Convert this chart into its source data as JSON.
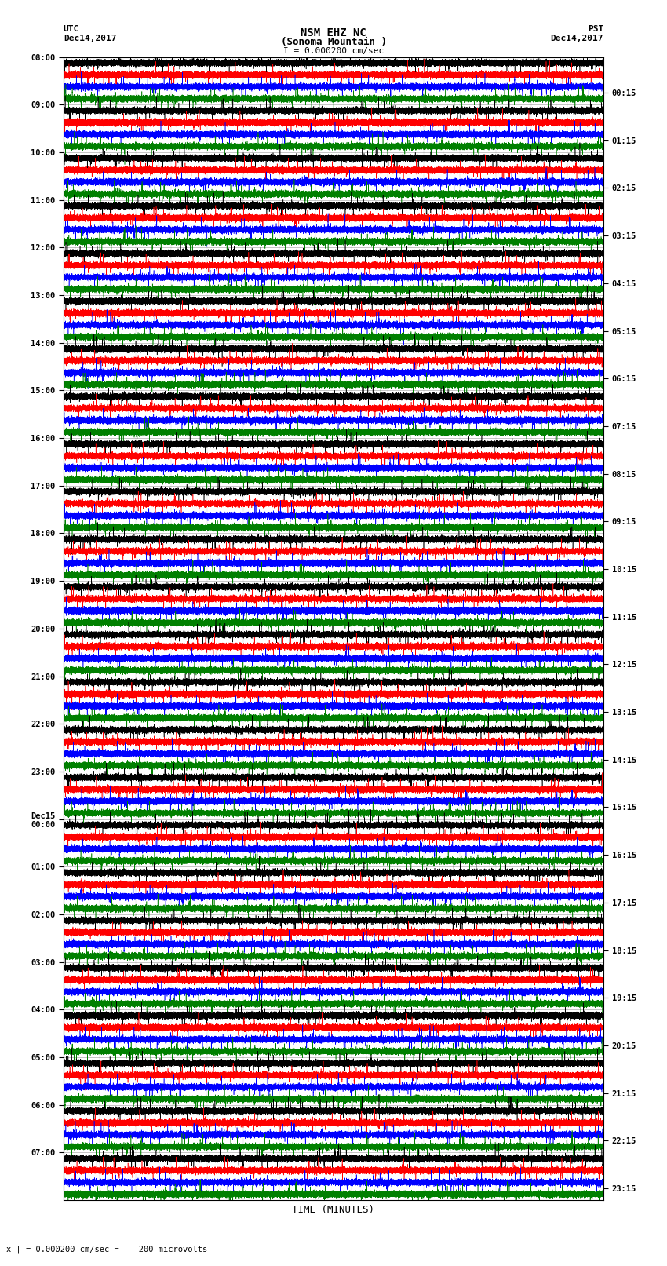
{
  "title_line1": "NSM EHZ NC",
  "title_line2": "(Sonoma Mountain )",
  "scale_label": "I = 0.000200 cm/sec",
  "utc_label": "UTC\nDec14,2017",
  "pst_label": "PST\nDec14,2017",
  "bottom_label": "x | = 0.000200 cm/sec =    200 microvolts",
  "xlabel": "TIME (MINUTES)",
  "left_times": [
    "08:00",
    "09:00",
    "10:00",
    "11:00",
    "12:00",
    "13:00",
    "14:00",
    "15:00",
    "16:00",
    "17:00",
    "18:00",
    "19:00",
    "20:00",
    "21:00",
    "22:00",
    "23:00",
    "Dec15\n00:00",
    "01:00",
    "02:00",
    "03:00",
    "04:00",
    "05:00",
    "06:00",
    "07:00"
  ],
  "right_times": [
    "00:15",
    "01:15",
    "02:15",
    "03:15",
    "04:15",
    "05:15",
    "06:15",
    "07:15",
    "08:15",
    "09:15",
    "10:15",
    "11:15",
    "12:15",
    "13:15",
    "14:15",
    "15:15",
    "16:15",
    "17:15",
    "18:15",
    "19:15",
    "20:15",
    "21:15",
    "22:15",
    "23:15"
  ],
  "n_rows": 24,
  "n_traces_per_row": 4,
  "colors": [
    "black",
    "red",
    "blue",
    "green"
  ],
  "minutes": 15,
  "sample_rate": 50,
  "bg_color": "white",
  "line_width": 0.4,
  "noise_scale": [
    0.03,
    0.025,
    0.025,
    0.02
  ],
  "spike_prob": 0.0015,
  "spike_amp": [
    0.28,
    0.22,
    0.22,
    0.18
  ]
}
